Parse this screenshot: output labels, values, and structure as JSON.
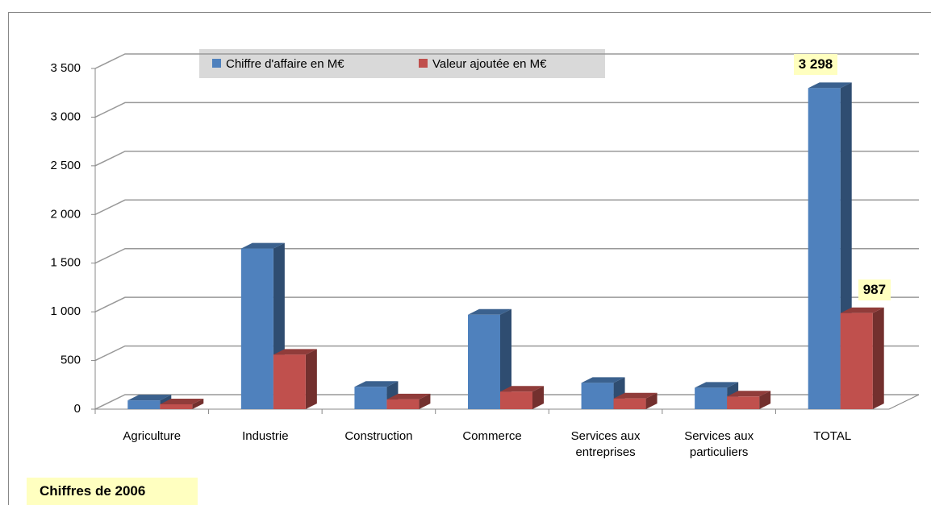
{
  "chart_data": {
    "type": "bar3d",
    "categories": [
      "Agriculture",
      "Industrie",
      "Construction",
      "Commerce",
      "Services aux\nentreprises",
      "Services aux\nparticuliers",
      "TOTAL"
    ],
    "series": [
      {
        "name": "Chiffre d'affaire en M€",
        "color": "#4f81bd",
        "values": [
          90,
          1650,
          230,
          970,
          270,
          220,
          3298
        ],
        "value_labels": [
          null,
          null,
          null,
          null,
          null,
          null,
          "3 298"
        ]
      },
      {
        "name": "Valeur ajoutée  en M€",
        "color": "#c0504d",
        "values": [
          50,
          560,
          100,
          180,
          110,
          130,
          987
        ],
        "value_labels": [
          null,
          null,
          null,
          null,
          null,
          null,
          "987"
        ]
      }
    ],
    "ylim": [
      0,
      3500
    ],
    "yticks": [
      0,
      500,
      {
        "value": 1000,
        "label": "1 000"
      },
      {
        "value": 1500,
        "label": "1 500"
      },
      {
        "value": 2000,
        "label": "2 000"
      },
      {
        "value": 2500,
        "label": "2 500"
      },
      {
        "value": 3000,
        "label": "3 000"
      },
      {
        "value": 3500,
        "label": "3 500"
      }
    ],
    "grid": true,
    "annotation": "Chiffres de 2006"
  }
}
